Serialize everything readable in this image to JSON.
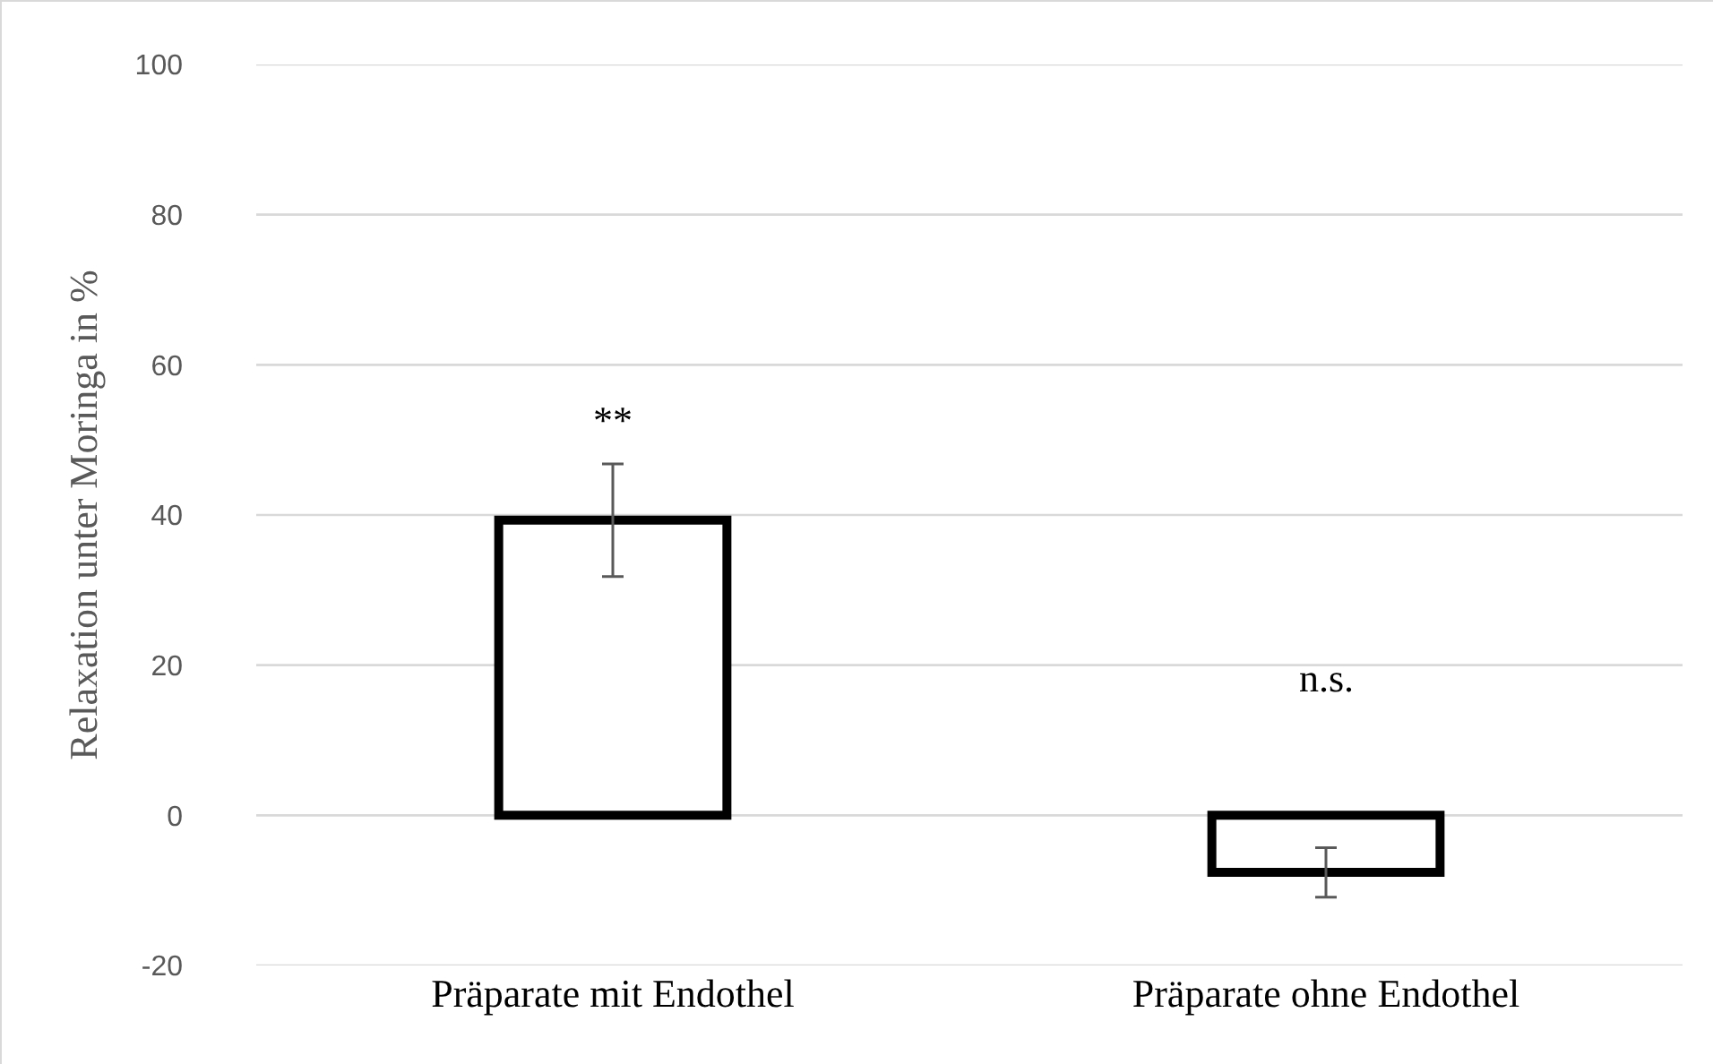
{
  "chart_data": {
    "type": "bar",
    "ylabel": "Relaxation unter Moringa in %",
    "categories": [
      "Präparate mit Endothel",
      "Präparate ohne Endothel"
    ],
    "series": [
      {
        "color": "#000000",
        "values": [
          39.3,
          -7.6
        ],
        "errors": [
          7.5,
          3.3
        ]
      }
    ],
    "ylim": [
      -20,
      100
    ],
    "yticks": [
      -20,
      0,
      20,
      40,
      60,
      80,
      100
    ],
    "grid": "y",
    "annotations": [
      "**",
      "n.s."
    ]
  }
}
